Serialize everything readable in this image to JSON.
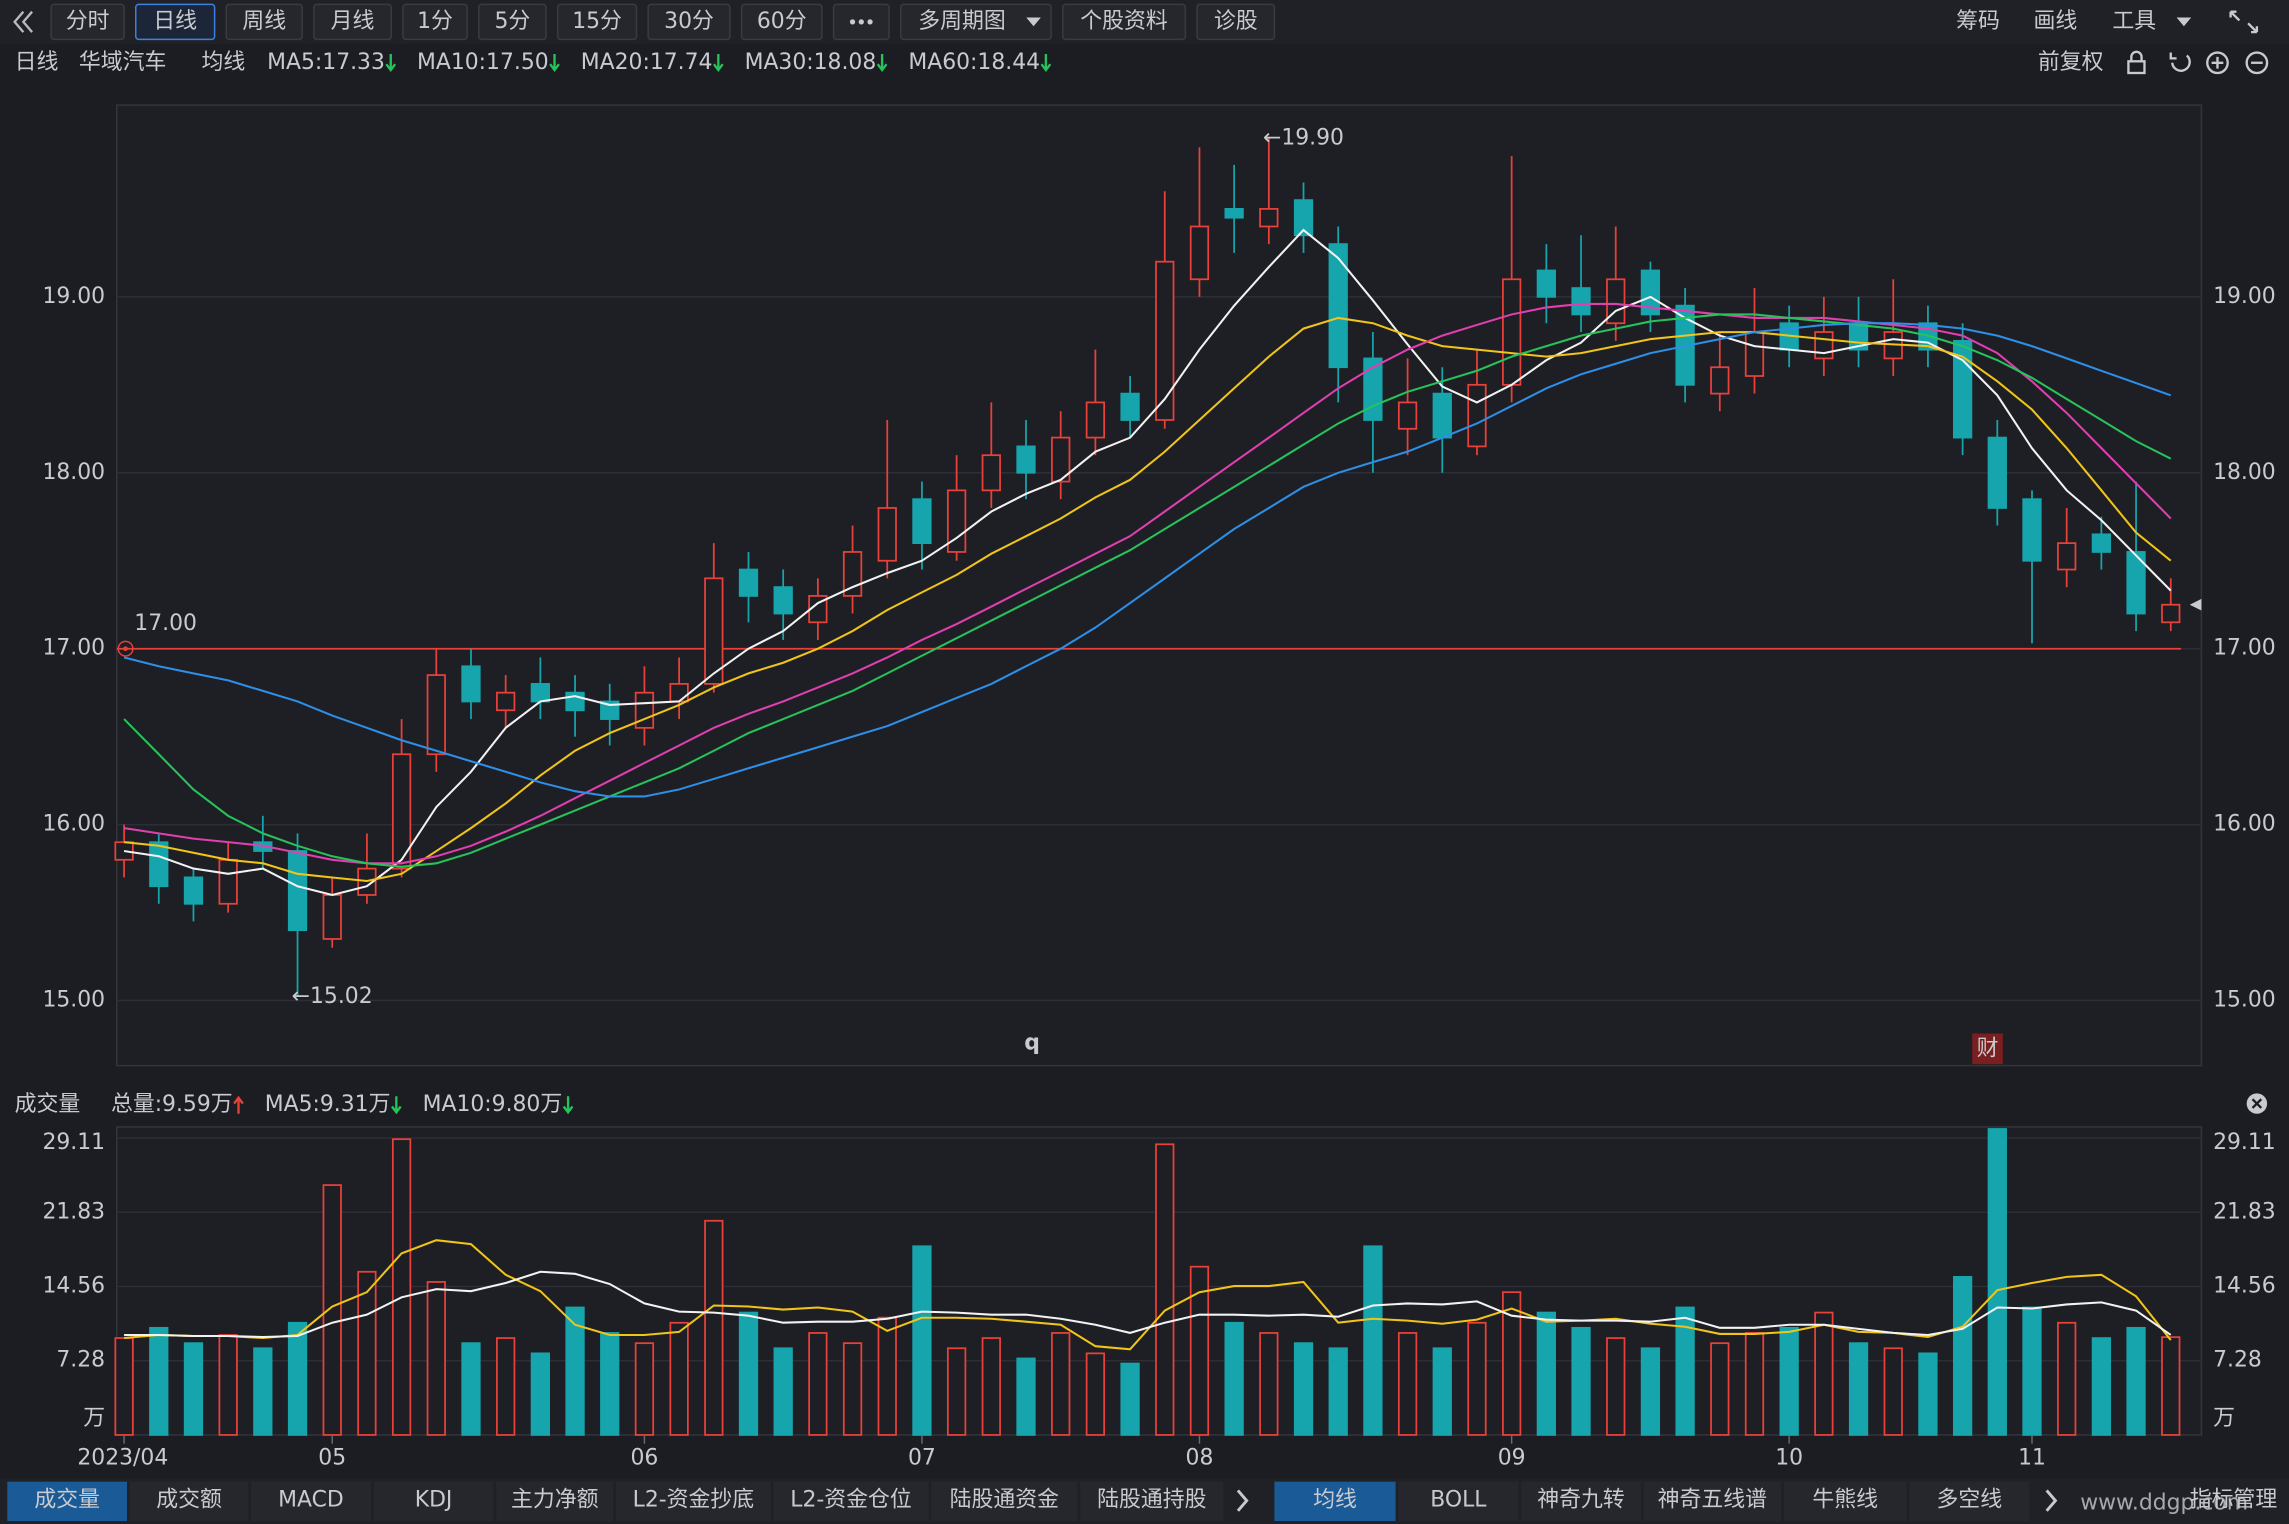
{
  "toolbar": {
    "left": [
      "分时",
      "日线",
      "周线",
      "月线",
      "1分",
      "5分",
      "15分",
      "30分",
      "60分",
      "多周期图",
      "个股资料",
      "诊股"
    ],
    "active": 1,
    "right": [
      "筹码",
      "画线",
      "工具"
    ]
  },
  "header": {
    "period": "日线",
    "stock": "华域汽车",
    "ma_title": "均线",
    "adjust": "前复权"
  },
  "chart_data": [
    {
      "type": "candlestick",
      "categories": [
        "2023/04",
        null,
        null,
        null,
        null,
        null,
        "05",
        null,
        null,
        null,
        null,
        null,
        null,
        null,
        null,
        "06",
        null,
        null,
        null,
        null,
        null,
        null,
        null,
        "07",
        null,
        null,
        null,
        null,
        null,
        null,
        null,
        "08",
        null,
        null,
        null,
        null,
        null,
        null,
        null,
        null,
        "09",
        null,
        null,
        null,
        null,
        null,
        null,
        null,
        "10",
        null,
        null,
        null,
        null,
        null,
        null,
        "11",
        null,
        null,
        null,
        null
      ],
      "open": [
        15.8,
        15.9,
        15.7,
        15.55,
        15.9,
        15.85,
        15.35,
        15.6,
        15.75,
        16.4,
        16.9,
        16.65,
        16.8,
        16.75,
        16.7,
        16.55,
        16.7,
        16.8,
        17.45,
        17.35,
        17.15,
        17.3,
        17.5,
        17.85,
        17.55,
        17.9,
        18.15,
        17.95,
        18.2,
        18.45,
        18.3,
        19.1,
        19.5,
        19.4,
        19.55,
        19.3,
        18.65,
        18.25,
        18.45,
        18.15,
        18.5,
        19.15,
        19.05,
        18.85,
        19.15,
        18.95,
        18.45,
        18.55,
        18.85,
        18.65,
        18.85,
        18.65,
        18.85,
        18.75,
        18.2,
        17.85,
        17.45,
        17.65,
        17.55,
        17.15
      ],
      "high": [
        16.0,
        15.95,
        15.75,
        15.9,
        16.05,
        15.95,
        15.7,
        15.95,
        16.6,
        17.0,
        17.0,
        16.85,
        16.95,
        16.85,
        16.8,
        16.9,
        16.95,
        17.6,
        17.55,
        17.45,
        17.4,
        17.7,
        18.3,
        17.95,
        18.1,
        18.4,
        18.3,
        18.35,
        18.7,
        18.55,
        19.6,
        19.85,
        19.75,
        19.9,
        19.65,
        19.4,
        18.8,
        18.65,
        18.6,
        18.7,
        19.8,
        19.3,
        19.35,
        19.4,
        19.2,
        19.05,
        18.8,
        19.05,
        18.95,
        19.0,
        19.0,
        19.1,
        18.95,
        18.85,
        18.3,
        17.9,
        17.8,
        17.75,
        17.95,
        17.4
      ],
      "low": [
        15.7,
        15.55,
        15.45,
        15.5,
        15.75,
        15.02,
        15.3,
        15.55,
        15.7,
        16.3,
        16.6,
        16.55,
        16.6,
        16.5,
        16.45,
        16.45,
        16.6,
        16.75,
        17.15,
        17.05,
        17.05,
        17.2,
        17.4,
        17.45,
        17.5,
        17.8,
        17.85,
        17.85,
        18.1,
        18.2,
        18.25,
        19.0,
        19.25,
        19.3,
        19.25,
        18.4,
        18.0,
        18.1,
        18.0,
        18.1,
        18.4,
        18.85,
        18.8,
        18.75,
        18.8,
        18.4,
        18.35,
        18.45,
        18.6,
        18.55,
        18.6,
        18.55,
        18.6,
        18.1,
        17.7,
        17.03,
        17.35,
        17.45,
        17.1,
        17.1
      ],
      "close": [
        15.9,
        15.65,
        15.55,
        15.8,
        15.85,
        15.4,
        15.6,
        15.75,
        16.4,
        16.85,
        16.7,
        16.75,
        16.7,
        16.65,
        16.6,
        16.75,
        16.8,
        17.4,
        17.3,
        17.2,
        17.3,
        17.55,
        17.8,
        17.6,
        17.9,
        18.1,
        18.0,
        18.2,
        18.4,
        18.3,
        19.2,
        19.4,
        19.45,
        19.5,
        19.35,
        18.6,
        18.3,
        18.4,
        18.2,
        18.5,
        19.1,
        19.0,
        18.9,
        19.1,
        18.9,
        18.5,
        18.6,
        18.8,
        18.7,
        18.8,
        18.7,
        18.8,
        18.7,
        18.2,
        17.8,
        17.5,
        17.6,
        17.55,
        17.2,
        17.25
      ],
      "up_color": "#e8413a",
      "down_color": "#17a5ad",
      "series": [
        {
          "name": "MA5:17.33",
          "color": "#f2f2f2",
          "values": [
            15.85,
            15.82,
            15.75,
            15.72,
            15.75,
            15.65,
            15.6,
            15.65,
            15.8,
            16.1,
            16.3,
            16.55,
            16.7,
            16.73,
            16.68,
            16.69,
            16.7,
            16.86,
            17.0,
            17.1,
            17.26,
            17.35,
            17.43,
            17.5,
            17.63,
            17.78,
            17.88,
            17.96,
            18.12,
            18.2,
            18.42,
            18.7,
            18.95,
            19.17,
            19.38,
            19.22,
            18.98,
            18.73,
            18.49,
            18.4,
            18.5,
            18.64,
            18.74,
            18.92,
            19.0,
            18.88,
            18.78,
            18.72,
            18.7,
            18.68,
            18.72,
            18.76,
            18.74,
            18.64,
            18.44,
            18.14,
            17.9,
            17.73,
            17.53,
            17.33
          ]
        },
        {
          "name": "MA10:17.50",
          "color": "#f0c419",
          "values": [
            15.9,
            15.88,
            15.84,
            15.8,
            15.78,
            15.72,
            15.7,
            15.68,
            15.72,
            15.85,
            15.98,
            16.12,
            16.28,
            16.42,
            16.52,
            16.6,
            16.68,
            16.78,
            16.86,
            16.92,
            17.0,
            17.1,
            17.22,
            17.32,
            17.42,
            17.54,
            17.64,
            17.74,
            17.86,
            17.96,
            18.12,
            18.3,
            18.48,
            18.66,
            18.82,
            18.88,
            18.85,
            18.78,
            18.72,
            18.7,
            18.68,
            18.66,
            18.68,
            18.72,
            18.76,
            18.78,
            18.8,
            18.8,
            18.78,
            18.76,
            18.74,
            18.73,
            18.72,
            18.66,
            18.52,
            18.36,
            18.14,
            17.9,
            17.66,
            17.5
          ]
        },
        {
          "name": "MA20:17.74",
          "color": "#e03fb0",
          "values": [
            15.98,
            15.95,
            15.92,
            15.9,
            15.88,
            15.84,
            15.8,
            15.78,
            15.78,
            15.82,
            15.88,
            15.96,
            16.05,
            16.15,
            16.25,
            16.35,
            16.45,
            16.55,
            16.63,
            16.7,
            16.78,
            16.86,
            16.95,
            17.05,
            17.14,
            17.24,
            17.34,
            17.44,
            17.54,
            17.64,
            17.78,
            17.92,
            18.06,
            18.2,
            18.34,
            18.48,
            18.6,
            18.7,
            18.78,
            18.84,
            18.9,
            18.94,
            18.96,
            18.96,
            18.94,
            18.92,
            18.9,
            18.88,
            18.88,
            18.88,
            18.86,
            18.84,
            18.82,
            18.78,
            18.68,
            18.52,
            18.34,
            18.14,
            17.94,
            17.74
          ]
        },
        {
          "name": "MA30:18.08",
          "color": "#27c35a",
          "values": [
            16.6,
            16.4,
            16.2,
            16.05,
            15.95,
            15.88,
            15.82,
            15.78,
            15.76,
            15.78,
            15.84,
            15.92,
            16.0,
            16.08,
            16.16,
            16.24,
            16.32,
            16.42,
            16.52,
            16.6,
            16.68,
            16.76,
            16.86,
            16.96,
            17.06,
            17.16,
            17.26,
            17.36,
            17.46,
            17.56,
            17.68,
            17.8,
            17.92,
            18.04,
            18.16,
            18.28,
            18.38,
            18.46,
            18.52,
            18.58,
            18.66,
            18.72,
            18.78,
            18.82,
            18.86,
            18.88,
            18.9,
            18.9,
            18.88,
            18.86,
            18.84,
            18.82,
            18.78,
            18.72,
            18.64,
            18.54,
            18.42,
            18.3,
            18.18,
            18.08
          ]
        },
        {
          "name": "MA60:18.44",
          "color": "#2d8fe8",
          "values": [
            16.95,
            16.9,
            16.86,
            16.82,
            16.76,
            16.7,
            16.62,
            16.55,
            16.48,
            16.42,
            16.36,
            16.3,
            16.24,
            16.19,
            16.16,
            16.16,
            16.2,
            16.26,
            16.32,
            16.38,
            16.44,
            16.5,
            16.56,
            16.64,
            16.72,
            16.8,
            16.9,
            17.0,
            17.12,
            17.26,
            17.4,
            17.54,
            17.68,
            17.8,
            17.92,
            18.0,
            18.06,
            18.12,
            18.2,
            18.28,
            18.38,
            18.48,
            18.56,
            18.62,
            18.68,
            18.72,
            18.76,
            18.8,
            18.82,
            18.84,
            18.85,
            18.85,
            18.84,
            18.82,
            18.78,
            18.72,
            18.65,
            18.58,
            18.51,
            18.44
          ]
        }
      ],
      "ylim": [
        14.63,
        20.09
      ],
      "yticks": [
        {
          "value": 15,
          "label": "15.00"
        },
        {
          "value": 16,
          "label": "16.00"
        },
        {
          "value": 17,
          "label": "17.00"
        },
        {
          "value": 18,
          "label": "18.00"
        },
        {
          "value": 19,
          "label": "19.00"
        }
      ],
      "grid": true,
      "hline": {
        "value": 17,
        "label": "17.00",
        "color": "#e8413a"
      },
      "annotations": [
        {
          "index": 33,
          "value": 19.9,
          "text": "←19.90"
        },
        {
          "index": 5,
          "value": 15.02,
          "text": "←15.02"
        }
      ],
      "markers": [
        "q",
        "财"
      ]
    },
    {
      "type": "bar",
      "title": "成交量",
      "unit": "万",
      "values": [
        9.5,
        10.5,
        9.0,
        9.8,
        8.5,
        11.0,
        24.5,
        16.0,
        29.0,
        15.0,
        9.0,
        9.5,
        8.0,
        12.5,
        10.0,
        9.0,
        11.0,
        21.0,
        12.0,
        8.5,
        10.0,
        9.0,
        11.5,
        18.5,
        8.5,
        9.5,
        7.5,
        10.0,
        8.0,
        7.0,
        28.5,
        16.5,
        11.0,
        10.0,
        9.0,
        8.5,
        18.5,
        10.0,
        8.5,
        11.0,
        14.0,
        12.0,
        10.5,
        9.5,
        8.5,
        12.5,
        9.0,
        10.0,
        10.5,
        12.0,
        9.0,
        8.5,
        8.0,
        15.5,
        30.0,
        12.5,
        11.0,
        9.5,
        10.5,
        9.59
      ],
      "name": "总量:9.59万",
      "name_color": "#e8413a",
      "series": [
        {
          "name": "MA5:9.31万",
          "color": "#f0c419",
          "values": [
            9.5,
            9.8,
            9.7,
            9.7,
            9.5,
            9.8,
            12.6,
            14.0,
            17.8,
            19.1,
            18.7,
            15.7,
            14.1,
            10.8,
            9.8,
            9.8,
            10.1,
            12.7,
            12.6,
            12.3,
            12.5,
            12.1,
            10.2,
            11.5,
            11.5,
            11.4,
            11.1,
            10.8,
            8.7,
            8.4,
            12.2,
            14.0,
            14.6,
            14.6,
            15.0,
            11.0,
            11.4,
            11.2,
            10.9,
            11.3,
            12.4,
            11.1,
            11.2,
            11.4,
            10.9,
            10.6,
            9.9,
            9.9,
            10.1,
            10.8,
            10.1,
            10.0,
            9.6,
            10.6,
            14.2,
            14.9,
            15.5,
            15.7,
            13.6,
            9.31
          ]
        },
        {
          "name": "MA10:9.80万",
          "color": "#f2f2f2",
          "values": [
            9.8,
            9.8,
            9.7,
            9.7,
            9.6,
            9.7,
            11.0,
            11.8,
            13.5,
            14.3,
            14.1,
            14.9,
            16.0,
            15.8,
            14.8,
            12.9,
            12.1,
            12.0,
            11.7,
            11.0,
            11.1,
            11.1,
            11.4,
            12.1,
            12.0,
            11.8,
            11.8,
            11.4,
            10.8,
            10.0,
            11.0,
            11.8,
            11.8,
            11.7,
            11.8,
            11.6,
            12.7,
            12.9,
            12.8,
            13.1,
            11.7,
            11.3,
            11.2,
            11.2,
            11.1,
            11.5,
            10.5,
            10.5,
            10.8,
            10.8,
            10.4,
            10.0,
            9.8,
            10.4,
            12.5,
            12.4,
            12.8,
            13.0,
            12.2,
            9.8
          ]
        }
      ],
      "ylim": [
        0,
        30.2
      ],
      "yticks": [
        7.28,
        14.56,
        21.83,
        29.11
      ],
      "grid": true
    }
  ],
  "tabs": {
    "left": [
      "成交量",
      "成交额",
      "MACD",
      "KDJ",
      "主力净额",
      "L2-资金抄底",
      "L2-资金仓位",
      "陆股通资金",
      "陆股通持股"
    ],
    "right": [
      "均线",
      "BOLL",
      "神奇九转",
      "神奇五线谱",
      "牛熊线",
      "多空线"
    ],
    "manage": "指标管理",
    "active_left": 0,
    "active_right": 0
  },
  "watermark": "www.ddgp.com"
}
